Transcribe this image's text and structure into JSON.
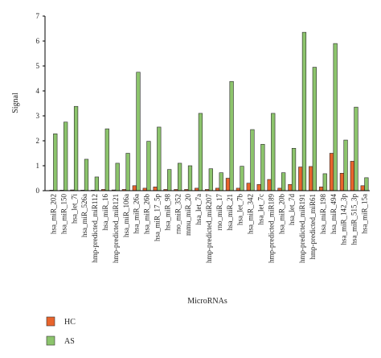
{
  "chart_data": {
    "type": "bar",
    "xlabel": "MicroRNAs",
    "ylabel": "Signal",
    "ylim": [
      0,
      7
    ],
    "yticks": [
      0,
      1,
      2,
      3,
      4,
      5,
      6,
      7
    ],
    "grid": false,
    "legend_position": "bottom-left",
    "categories": [
      "hsa_miR_202",
      "hsa_miR_150",
      "hsa_let_7i",
      "hsa_miR_526a",
      "hmp-predicted_miR112",
      "hsa_miR_16",
      "hmp-predicted_miR121",
      "hsa_miR_106a",
      "hsa_miR_26a",
      "hsa_miR_26b",
      "hsa_miR_17_5p",
      "hsa_miR_98",
      "rno_miR_352",
      "mmu_miR_20",
      "hsa_let_7a",
      "hmp-predicted_miR207",
      "rno_miR_17",
      "hsa_miR_21",
      "hsa_let_7b",
      "hsa_miR_342",
      "hsa_let_7c",
      "hmp-predicted_miR189",
      "hsa_miR_20b",
      "hsa_let_7d",
      "hmp-predicted_miR191",
      "hmp-predicted_miR61",
      "hsa_miR_198",
      "hsa_miR_494",
      "hsa_miR_142_3p",
      "hsa_miR_515_3p",
      "hsa_miR_15a"
    ],
    "series": [
      {
        "name": "HC",
        "color": "#e8642c",
        "values": [
          0.02,
          0.02,
          0.03,
          0.02,
          0.02,
          0.05,
          0.03,
          0.05,
          0.2,
          0.1,
          0.15,
          0.05,
          0.05,
          0.05,
          0.1,
          0.05,
          0.1,
          0.5,
          0.1,
          0.3,
          0.25,
          0.45,
          0.1,
          0.25,
          0.95,
          0.97,
          0.15,
          1.5,
          0.7,
          1.18,
          0.2
        ]
      },
      {
        "name": "AS",
        "color": "#8cc46c",
        "values": [
          2.28,
          2.75,
          3.38,
          1.26,
          0.55,
          2.48,
          1.1,
          1.5,
          4.75,
          1.98,
          2.55,
          0.85,
          1.1,
          1.0,
          3.1,
          0.88,
          0.72,
          4.38,
          0.98,
          2.45,
          1.86,
          3.1,
          0.72,
          1.7,
          6.35,
          4.95,
          0.68,
          5.9,
          2.03,
          3.35,
          0.52
        ]
      }
    ]
  }
}
